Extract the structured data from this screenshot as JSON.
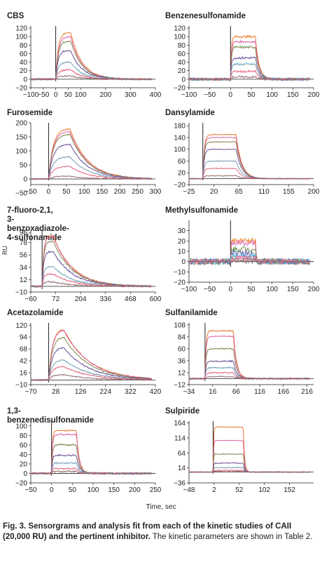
{
  "figure": {
    "y_axis_label": "RU",
    "x_axis_label": "Time, sec",
    "caption_bold": "Fig. 3. Sensorgrams and analysis fit from each of the kinetic studies of CAII (20,000 RU) and the pertinent inhibitor.",
    "caption_rest": " The kinetic parameters are shown in Table 2."
  },
  "colors": {
    "series": [
      "#f28e2b",
      "#e07bd0",
      "#59a14f",
      "#3f51b5",
      "#4dc3e0",
      "#e8749a",
      "#7f7f7f"
    ],
    "fit": "#d62728",
    "injection_line": "#231f20"
  },
  "chart_data": [
    {
      "type": "line",
      "title": "CBS",
      "xlim": [
        -100,
        400
      ],
      "ylim": [
        -20,
        125
      ],
      "xticks": [
        "−100",
        "−50",
        "0",
        "50",
        "100",
        "200",
        "300",
        "400"
      ],
      "xtick_values": [
        -100,
        -50,
        0,
        50,
        100,
        200,
        300,
        400
      ],
      "yticks": [
        "120",
        "100",
        "80",
        "60",
        "40",
        "20",
        "0",
        "−20"
      ],
      "ytick_values": [
        120,
        100,
        80,
        60,
        40,
        20,
        0,
        -20
      ],
      "injection_start": 0,
      "injection_end": 60,
      "decay": 0.022,
      "rise": 0.1,
      "noise": 2,
      "series_peaks": [
        110,
        100,
        90,
        68,
        40,
        22,
        8
      ]
    },
    {
      "type": "line",
      "title": "Benzenesulfonamide",
      "xlim": [
        -100,
        200
      ],
      "ylim": [
        -20,
        125
      ],
      "xticks": [
        "−100",
        "−50",
        "0",
        "50",
        "100",
        "150",
        "200"
      ],
      "xtick_values": [
        -100,
        -50,
        0,
        50,
        100,
        150,
        200
      ],
      "yticks": [
        "120",
        "100",
        "80",
        "60",
        "40",
        "20",
        "0",
        "−20"
      ],
      "ytick_values": [
        120,
        100,
        80,
        60,
        40,
        20,
        0,
        -20
      ],
      "injection_start": 0,
      "injection_end": 60,
      "decay": 0.12,
      "rise": 0.5,
      "noise": 3,
      "series_peaks": [
        100,
        88,
        75,
        50,
        35,
        18,
        5
      ]
    },
    {
      "type": "line",
      "title": "Furosemide",
      "xlim": [
        -50,
        300
      ],
      "ylim": [
        -20,
        200
      ],
      "xticks": [
        "−50",
        "0",
        "50",
        "100",
        "150",
        "200",
        "250",
        "300"
      ],
      "xtick_values": [
        -50,
        0,
        50,
        100,
        150,
        200,
        250,
        300
      ],
      "yticks": [
        "200",
        "150",
        "100",
        "50",
        "0",
        "−50"
      ],
      "ytick_values": [
        200,
        150,
        100,
        50,
        0,
        -50
      ],
      "injection_start": 0,
      "injection_end": 60,
      "decay": 0.02,
      "rise": 0.08,
      "noise": 2,
      "series_peaks": [
        180,
        170,
        160,
        125,
        80,
        45,
        10
      ]
    },
    {
      "type": "line",
      "title": "Dansylamide",
      "xlim": [
        -25,
        200
      ],
      "ylim": [
        -20,
        190
      ],
      "xticks": [
        "−25",
        "20",
        "65",
        "110",
        "155",
        "200"
      ],
      "xtick_values": [
        -25,
        20,
        65,
        110,
        155,
        200
      ],
      "yticks": [
        "180",
        "140",
        "100",
        "60",
        "20",
        "−20"
      ],
      "ytick_values": [
        180,
        140,
        100,
        60,
        20,
        -20
      ],
      "injection_start": 0,
      "injection_end": 60,
      "decay": 0.1,
      "rise": 0.4,
      "noise": 1.5,
      "series_peaks": [
        150,
        140,
        125,
        100,
        60,
        35,
        10
      ]
    },
    {
      "type": "line",
      "title": "7-fluoro-2,1,\n3-benzoxadiazole-4-sulfonamide",
      "xlim": [
        -60,
        600
      ],
      "ylim": [
        -10,
        100
      ],
      "xticks": [
        "−60",
        "72",
        "204",
        "336",
        "468",
        "600"
      ],
      "xtick_values": [
        -60,
        72,
        204,
        336,
        468,
        600
      ],
      "yticks": [
        "96",
        "78",
        "56",
        "34",
        "12",
        "−10"
      ],
      "ytick_values": [
        96,
        78,
        56,
        34,
        12,
        -10
      ],
      "injection_start": 0,
      "injection_end": 60,
      "decay": 0.01,
      "rise": 0.12,
      "noise": 1.5,
      "series_peaks": [
        90,
        88,
        80,
        62,
        35,
        22,
        8
      ]
    },
    {
      "type": "line",
      "title": "Methylsulfonamide",
      "xlim": [
        -100,
        200
      ],
      "ylim": [
        -20,
        40
      ],
      "xticks": [
        "−100",
        "−50",
        "0",
        "50",
        "100",
        "150",
        "200"
      ],
      "xtick_values": [
        -100,
        -50,
        0,
        50,
        100,
        150,
        200
      ],
      "yticks": [
        "30",
        "20",
        "10",
        "0",
        "−10",
        "−20"
      ],
      "ytick_values": [
        30,
        20,
        10,
        0,
        -10,
        -20
      ],
      "injection_start": 0,
      "injection_end": 60,
      "decay": 0.6,
      "rise": 1.5,
      "noise": 3,
      "series_peaks": [
        20,
        18,
        12,
        8,
        5,
        3,
        1
      ]
    },
    {
      "type": "line",
      "title": "Acetazolamide",
      "xlim": [
        -70,
        420
      ],
      "ylim": [
        -10,
        125
      ],
      "xticks": [
        "−70",
        "28",
        "126",
        "224",
        "322",
        "420"
      ],
      "xtick_values": [
        -70,
        28,
        126,
        224,
        322,
        420
      ],
      "yticks": [
        "120",
        "94",
        "68",
        "42",
        "16",
        "−10"
      ],
      "ytick_values": [
        120,
        94,
        68,
        42,
        16,
        -10
      ],
      "injection_start": 0,
      "injection_end": 60,
      "decay": 0.01,
      "rise": 0.07,
      "noise": 1.5,
      "series_peaks": [
        112,
        110,
        95,
        72,
        45,
        30,
        12
      ]
    },
    {
      "type": "line",
      "title": "Sulfanilamide",
      "xlim": [
        -34,
        230
      ],
      "ylim": [
        -12,
        112
      ],
      "xticks": [
        "−34",
        "16",
        "66",
        "116",
        "166",
        "216"
      ],
      "xtick_values": [
        -34,
        16,
        66,
        116,
        166,
        216
      ],
      "yticks": [
        "108",
        "84",
        "60",
        "36",
        "12",
        "−12"
      ],
      "ytick_values": [
        108,
        84,
        60,
        36,
        12,
        -12
      ],
      "injection_start": 0,
      "injection_end": 60,
      "decay": 0.15,
      "rise": 0.5,
      "noise": 1.5,
      "series_peaks": [
        96,
        85,
        60,
        35,
        22,
        12,
        4
      ]
    },
    {
      "type": "line",
      "title": "1,3-benzenedisulfonamide",
      "xlim": [
        -50,
        250
      ],
      "ylim": [
        -20,
        110
      ],
      "xticks": [
        "−50",
        "0",
        "50",
        "100",
        "150",
        "200",
        "250"
      ],
      "xtick_values": [
        -50,
        0,
        50,
        100,
        150,
        200,
        250
      ],
      "yticks": [
        "100",
        "80",
        "60",
        "40",
        "20",
        "0",
        "−20"
      ],
      "ytick_values": [
        100,
        80,
        60,
        40,
        20,
        0,
        -20
      ],
      "injection_start": 0,
      "injection_end": 60,
      "decay": 0.15,
      "rise": 0.5,
      "noise": 2,
      "series_peaks": [
        90,
        82,
        60,
        38,
        22,
        10,
        4
      ]
    },
    {
      "type": "line",
      "title": "Sulpiride",
      "xlim": [
        -48,
        200
      ],
      "ylim": [
        -36,
        170
      ],
      "xticks": [
        "−48",
        "2",
        "52",
        "102",
        "152"
      ],
      "xtick_values": [
        -48,
        2,
        52,
        102,
        152
      ],
      "yticks": [
        "164",
        "114",
        "64",
        "14",
        "−36"
      ],
      "ytick_values": [
        164,
        114,
        64,
        14,
        -36
      ],
      "injection_start": 0,
      "injection_end": 60,
      "decay": 0.4,
      "rise": 1.2,
      "noise": 1.5,
      "series_peaks": [
        150,
        105,
        60,
        30,
        15,
        6,
        2
      ]
    }
  ]
}
